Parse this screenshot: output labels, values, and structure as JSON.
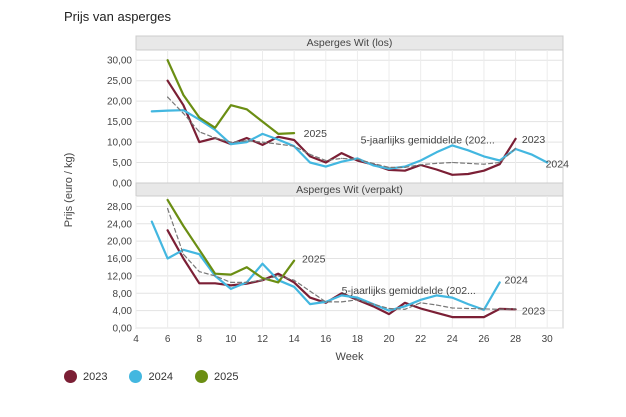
{
  "page_title": "Prijs van asperges",
  "chart_data": {
    "type": "line",
    "title": "Prijs van asperges",
    "xlabel": "Week",
    "ylabel": "Prijs (euro / kg)",
    "xlim": [
      4,
      31
    ],
    "x_ticks": [
      "4",
      "6",
      "8",
      "10",
      "12",
      "14",
      "16",
      "18",
      "20",
      "22",
      "24",
      "26",
      "28",
      "30"
    ],
    "colors": {
      "2023": "#7b1f35",
      "2024": "#43b7e0",
      "2025": "#6b8e13",
      "avg": "#777777"
    },
    "legend": [
      "2023",
      "2024",
      "2025"
    ],
    "panels": [
      {
        "title": "Asperges Wit (los)",
        "ylim": [
          0,
          32.5
        ],
        "y_ticks": [
          "0,00",
          "5,00",
          "10,00",
          "15,00",
          "20,00",
          "25,00",
          "30,00"
        ],
        "y_tick_values": [
          0,
          5,
          10,
          15,
          20,
          25,
          30
        ],
        "series": [
          {
            "name": "2023",
            "x": [
              6,
              7,
              8,
              9,
              10,
              11,
              12,
              13,
              14,
              15,
              16,
              17,
              18,
              19,
              20,
              21,
              22,
              23,
              24,
              25,
              26,
              27,
              28
            ],
            "values": [
              25.0,
              19.0,
              10.0,
              11.0,
              9.5,
              11.0,
              9.3,
              11.3,
              10.5,
              6.5,
              5.0,
              7.3,
              5.5,
              4.5,
              3.2,
              3.0,
              4.4,
              3.3,
              2.0,
              2.2,
              3.0,
              4.6,
              10.8
            ]
          },
          {
            "name": "2024",
            "x": [
              5,
              6,
              7,
              8,
              9,
              10,
              11,
              12,
              13,
              14,
              15,
              16,
              17,
              18,
              19,
              20,
              21,
              22,
              23,
              24,
              25,
              26,
              27,
              28,
              29,
              30
            ],
            "values": [
              17.5,
              17.7,
              17.8,
              15.5,
              13.0,
              9.5,
              10.0,
              12.0,
              10.6,
              9.0,
              5.0,
              4.0,
              5.2,
              6.0,
              4.3,
              3.5,
              4.0,
              5.5,
              7.5,
              9.2,
              8.0,
              6.5,
              5.5,
              8.3,
              7.0,
              5.0
            ]
          },
          {
            "name": "2025",
            "x": [
              6,
              7,
              8,
              9,
              10,
              11,
              12,
              13,
              14
            ],
            "values": [
              30.0,
              21.5,
              16.0,
              13.5,
              19.0,
              18.0,
              15.0,
              12.0,
              12.2
            ]
          },
          {
            "name": "5-jaarlijks gemiddelde (202...",
            "dashed": true,
            "x": [
              6,
              7,
              8,
              9,
              10,
              11,
              12,
              13,
              14,
              15,
              16,
              17,
              18,
              19,
              20,
              21,
              22,
              23,
              24,
              25,
              26,
              27,
              28
            ],
            "values": [
              21.0,
              17.0,
              12.5,
              11.0,
              10.0,
              10.3,
              10.0,
              9.5,
              9.0,
              7.0,
              5.5,
              6.0,
              5.8,
              4.8,
              3.8,
              3.8,
              4.5,
              4.8,
              5.0,
              4.8,
              4.6,
              5.0,
              8.5
            ]
          }
        ],
        "labels": [
          {
            "text": "2025",
            "x": 14.6,
            "y": 12.2
          },
          {
            "text": "5-jaarlijks gemiddelde (202...",
            "x": 18.2,
            "y": 10.6
          },
          {
            "text": "2023",
            "x": 28.4,
            "y": 10.8
          },
          {
            "text": "2024",
            "x": 29.9,
            "y": 4.8
          }
        ]
      },
      {
        "title": "Asperges Wit (verpakt)",
        "ylim": [
          0,
          30.4
        ],
        "y_ticks": [
          "0,00",
          "4,00",
          "8,00",
          "12,00",
          "16,00",
          "20,00",
          "24,00",
          "28,00"
        ],
        "y_tick_values": [
          0,
          4,
          8,
          12,
          16,
          20,
          24,
          28
        ],
        "series": [
          {
            "name": "2023",
            "x": [
              6,
              7,
              8,
              9,
              10,
              11,
              12,
              13,
              14,
              15,
              16,
              17,
              18,
              19,
              20,
              21,
              22,
              23,
              24,
              25,
              26,
              27,
              28
            ],
            "values": [
              22.5,
              16.0,
              10.3,
              10.3,
              9.8,
              10.2,
              11.0,
              12.5,
              10.5,
              7.0,
              5.8,
              8.0,
              6.5,
              5.0,
              3.2,
              5.8,
              4.5,
              3.5,
              2.5,
              2.5,
              2.5,
              4.4,
              4.3
            ]
          },
          {
            "name": "2024",
            "x": [
              5,
              6,
              7,
              8,
              9,
              10,
              11,
              12,
              13,
              14,
              15,
              16,
              17,
              18,
              19,
              20,
              21,
              22,
              23,
              24,
              25,
              26,
              27
            ],
            "values": [
              24.5,
              16.0,
              18.0,
              17.0,
              12.0,
              9.0,
              10.5,
              14.8,
              11.0,
              9.5,
              5.5,
              6.0,
              7.5,
              7.0,
              5.5,
              4.0,
              5.0,
              6.5,
              7.5,
              7.0,
              5.5,
              4.2,
              10.5
            ]
          },
          {
            "name": "2025",
            "x": [
              6,
              7,
              8,
              9,
              10,
              11,
              12,
              13,
              14
            ],
            "values": [
              29.5,
              23.5,
              18.0,
              12.5,
              12.3,
              14.0,
              11.5,
              10.5,
              15.5
            ]
          },
          {
            "name": "5-jaarlijks gemiddelde (202...",
            "dashed": true,
            "x": [
              6,
              7,
              8,
              9,
              10,
              11,
              12,
              13,
              14,
              15,
              16,
              17,
              18,
              19,
              20,
              21,
              22,
              23,
              24,
              25,
              26,
              27,
              28
            ],
            "values": [
              27.5,
              17.0,
              13.0,
              12.0,
              10.5,
              10.5,
              11.0,
              12.0,
              11.0,
              8.5,
              6.0,
              6.0,
              6.5,
              5.5,
              4.5,
              4.3,
              5.8,
              5.3,
              4.6,
              4.5,
              4.4,
              4.3,
              4.4
            ]
          }
        ],
        "labels": [
          {
            "text": "2025",
            "x": 14.5,
            "y": 16.0
          },
          {
            "text": "5-jaarlijks gemiddelde (202...",
            "x": 17.0,
            "y": 8.8
          },
          {
            "text": "2024",
            "x": 27.3,
            "y": 11.2
          },
          {
            "text": "2023",
            "x": 28.4,
            "y": 4.0
          }
        ]
      }
    ]
  }
}
